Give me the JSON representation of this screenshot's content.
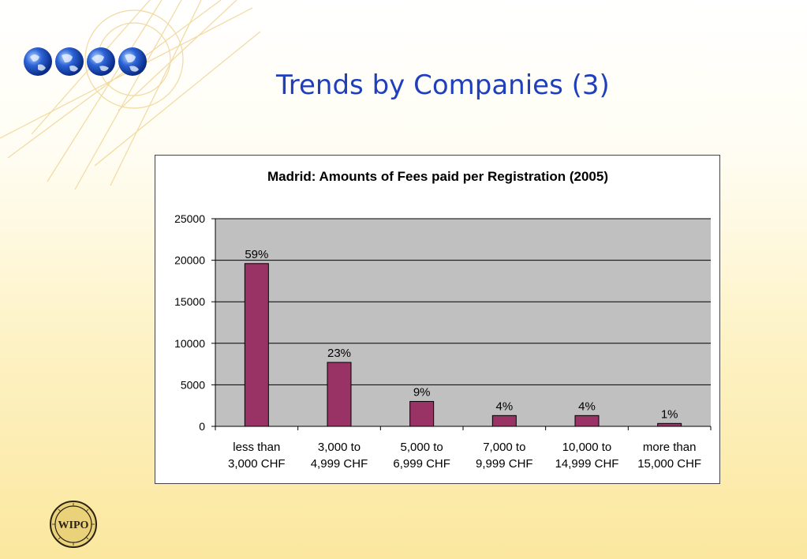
{
  "slide": {
    "title": "Trends by Companies (3)"
  },
  "logo": {
    "text": "WIPO"
  },
  "colors": {
    "bar": "#993366",
    "plot_bg": "#c0c0c0",
    "title": "#1f3fbd"
  },
  "chart_data": {
    "type": "bar",
    "title": "Madrid: Amounts of Fees paid per Registration (2005)",
    "xlabel": "",
    "ylabel": "",
    "ylim": [
      0,
      25000
    ],
    "yticks": [
      0,
      5000,
      10000,
      15000,
      20000,
      25000
    ],
    "grid": true,
    "legend": "none",
    "categories": [
      [
        "less than",
        "3,000 CHF"
      ],
      [
        "3,000 to",
        "4,999 CHF"
      ],
      [
        "5,000 to",
        "6,999 CHF"
      ],
      [
        "7,000 to",
        "9,999 CHF"
      ],
      [
        "10,000 to",
        "14,999 CHF"
      ],
      [
        "more than",
        "15,000 CHF"
      ]
    ],
    "values": [
      19600,
      7700,
      3000,
      1300,
      1300,
      350
    ],
    "data_labels": [
      "59%",
      "23%",
      "9%",
      "4%",
      "4%",
      "1%"
    ]
  }
}
